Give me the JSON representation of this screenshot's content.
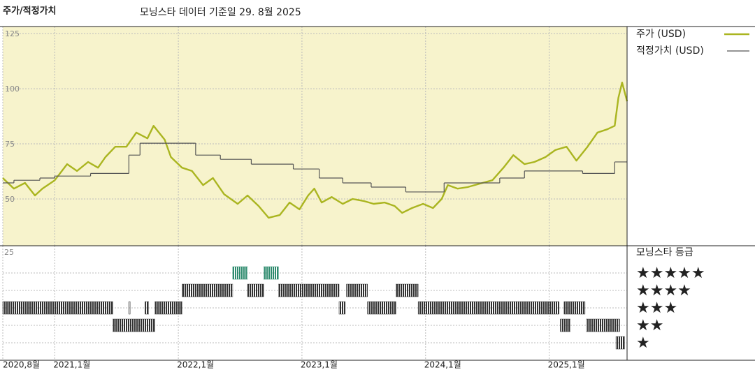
{
  "chart_data": [
    {
      "type": "line",
      "title": "주가/적정가치",
      "subtitle": "모닝스타 데이터 기준일 29. 8월 2025",
      "xlim": [
        2020.58,
        2025.63
      ],
      "ylim": [
        28.8,
        128.2
      ],
      "yticks": [
        125,
        100,
        75,
        50
      ],
      "grid": true,
      "legend": "right",
      "series": [
        {
          "name": "주가 (USD)",
          "color": "#aab520",
          "style": "line",
          "x": [
            2020.58,
            2020.67,
            2020.76,
            2020.84,
            2020.9,
            2021.0,
            2021.1,
            2021.18,
            2021.27,
            2021.35,
            2021.41,
            2021.49,
            2021.58,
            2021.66,
            2021.75,
            2021.8,
            2021.89,
            2021.94,
            2022.03,
            2022.11,
            2022.2,
            2022.28,
            2022.37,
            2022.48,
            2022.56,
            2022.65,
            2022.73,
            2022.82,
            2022.9,
            2022.98,
            2023.05,
            2023.1,
            2023.16,
            2023.24,
            2023.33,
            2023.41,
            2023.5,
            2023.58,
            2023.67,
            2023.75,
            2023.81,
            2023.89,
            2023.98,
            2024.06,
            2024.13,
            2024.18,
            2024.26,
            2024.34,
            2024.46,
            2024.54,
            2024.63,
            2024.71,
            2024.8,
            2024.88,
            2024.97,
            2025.05,
            2025.14,
            2025.22,
            2025.31,
            2025.39,
            2025.47,
            2025.53,
            2025.56,
            2025.59,
            2025.63
          ],
          "values": [
            59.5,
            54.7,
            57.3,
            51.6,
            54.7,
            58.5,
            65.8,
            62.7,
            66.8,
            64.2,
            69.0,
            73.7,
            73.7,
            80.1,
            77.5,
            83.2,
            76.9,
            69.0,
            64.2,
            62.7,
            56.3,
            59.5,
            52.2,
            47.8,
            51.6,
            46.8,
            41.5,
            42.7,
            48.4,
            45.3,
            51.6,
            54.7,
            48.4,
            50.9,
            47.8,
            50.0,
            49.1,
            47.8,
            48.4,
            46.8,
            43.7,
            45.9,
            47.8,
            45.9,
            50.0,
            56.3,
            54.7,
            55.4,
            57.3,
            58.5,
            64.2,
            69.9,
            65.8,
            66.8,
            69.0,
            72.2,
            73.7,
            67.4,
            73.7,
            80.1,
            81.6,
            83.2,
            95.9,
            102.8,
            94.3
          ]
        },
        {
          "name": "적정가치 (USD)",
          "color": "#555555",
          "style": "step",
          "x": [
            2020.58,
            2020.67,
            2020.88,
            2021.0,
            2021.29,
            2021.6,
            2021.69,
            2022.14,
            2022.34,
            2022.59,
            2022.93,
            2023.14,
            2023.33,
            2023.56,
            2023.84,
            2024.15,
            2024.6,
            2024.8,
            2025.27,
            2025.53,
            2025.63
          ],
          "values": [
            57.3,
            58.5,
            59.5,
            60.4,
            61.6,
            69.9,
            75.3,
            69.9,
            68.0,
            65.8,
            63.6,
            59.5,
            57.3,
            55.4,
            53.2,
            57.3,
            59.5,
            62.7,
            61.6,
            66.8,
            66.8
          ]
        }
      ]
    },
    {
      "type": "rating-timeline",
      "title": "모닝스타 등급",
      "axis_label": "25",
      "xlim": [
        2020.58,
        2025.63
      ],
      "xticks": [
        {
          "value": 2020.58,
          "label": "2020,8월"
        },
        {
          "value": 2021.0,
          "label": "2021,1월"
        },
        {
          "value": 2022.0,
          "label": "2022,1월"
        },
        {
          "value": 2023.0,
          "label": "2023,1월"
        },
        {
          "value": 2024.0,
          "label": "2024,1월"
        },
        {
          "value": 2025.0,
          "label": "2025,1월"
        }
      ],
      "series": [
        {
          "name": "★★★★★",
          "color": "#2e8b6e",
          "periods": [
            [
              2022.44,
              2022.56
            ],
            [
              2022.69,
              2022.81
            ]
          ]
        },
        {
          "name": "★★★★",
          "color": "#333333",
          "periods": [
            [
              2022.03,
              2022.44
            ],
            [
              2022.56,
              2022.69
            ],
            [
              2022.81,
              2023.3
            ],
            [
              2023.36,
              2023.53
            ],
            [
              2023.76,
              2023.94
            ]
          ]
        },
        {
          "name": "★★★",
          "color": "#333333",
          "periods": [
            [
              2020.58,
              2021.47
            ],
            [
              2021.6,
              2021.61
            ],
            [
              2021.73,
              2021.76
            ],
            [
              2021.81,
              2022.03
            ],
            [
              2023.3,
              2023.35
            ],
            [
              2023.53,
              2023.76
            ],
            [
              2023.94,
              2025.08
            ],
            [
              2025.12,
              2025.29
            ]
          ]
        },
        {
          "name": "★★",
          "color": "#333333",
          "periods": [
            [
              2021.47,
              2021.81
            ],
            [
              2025.09,
              2025.17
            ],
            [
              2025.3,
              2025.57
            ]
          ]
        },
        {
          "name": "★",
          "color": "#333333",
          "periods": [
            [
              2025.54,
              2025.61
            ]
          ]
        }
      ]
    }
  ]
}
